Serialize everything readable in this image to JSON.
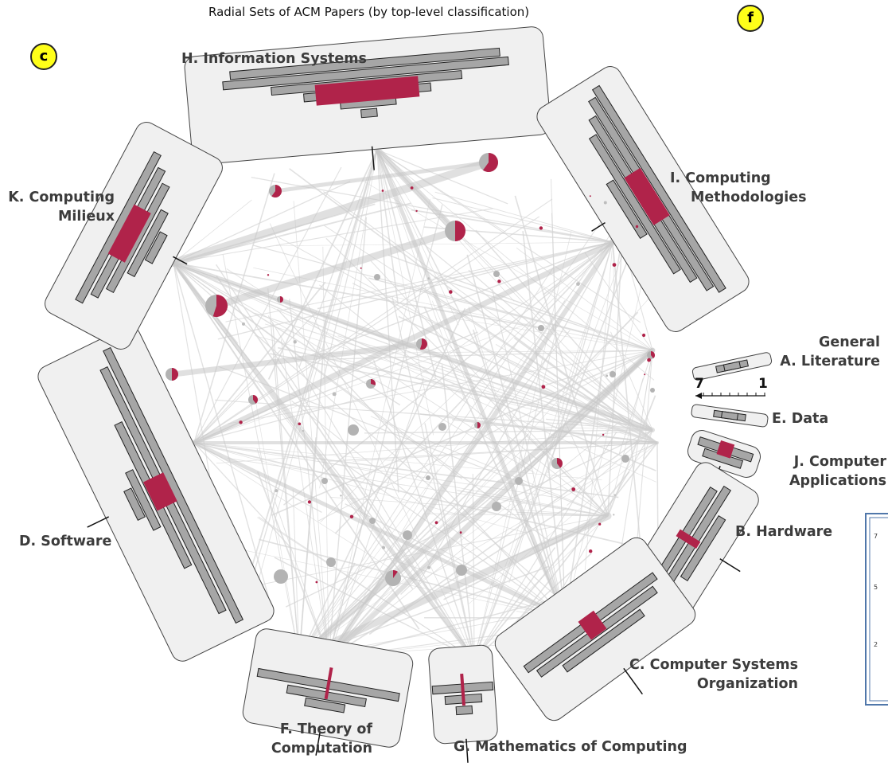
{
  "title": "Radial Sets of ACM Papers (by top-level classification)",
  "badges": {
    "left": "c",
    "right": "f"
  },
  "scale_axis": {
    "left_label": "7",
    "right_label": "1"
  },
  "colors": {
    "highlight": "#b0234a",
    "bar": "#a6a6a6",
    "panel": "#f0f0f0",
    "edge": "#c8c8c8"
  },
  "categories": [
    {
      "id": "H",
      "lines": [
        "H. Information Systems"
      ]
    },
    {
      "id": "I",
      "lines": [
        "I. Computing",
        "Methodologies"
      ]
    },
    {
      "id": "A",
      "lines": [
        "General",
        "A. Literature"
      ]
    },
    {
      "id": "E",
      "lines": [
        "E. Data"
      ]
    },
    {
      "id": "J",
      "lines": [
        "J. Computer",
        "Applications"
      ]
    },
    {
      "id": "B",
      "lines": [
        "B. Hardware"
      ]
    },
    {
      "id": "C",
      "lines": [
        "C. Computer Systems",
        "Organization"
      ]
    },
    {
      "id": "G",
      "lines": [
        "G. Mathematics of Computing"
      ]
    },
    {
      "id": "F",
      "lines": [
        "F. Theory of",
        "Computation"
      ]
    },
    {
      "id": "D",
      "lines": [
        "D. Software"
      ]
    },
    {
      "id": "K",
      "lines": [
        "K. Computing",
        "Milieux"
      ]
    }
  ],
  "side_panel_ticks": [
    "7",
    "5",
    "2"
  ]
}
